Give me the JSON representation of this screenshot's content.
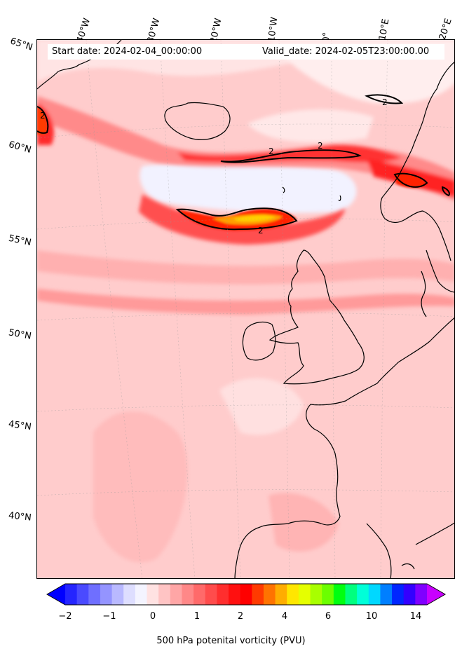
{
  "header": {
    "start_date": "Start date: 2024-02-04_00:00:00",
    "valid_date": "Valid_date: 2024-02-05T23:00:00.00"
  },
  "map": {
    "projection": "stereographic",
    "lon_labels": [
      "40°W",
      "30°W",
      "20°W",
      "10°W",
      "0°",
      "10°E",
      "20°E"
    ],
    "lat_labels": [
      "65°N",
      "60°N",
      "55°N",
      "50°N",
      "45°N",
      "40°N"
    ],
    "contour_level": "2",
    "contour_labels": [
      "2",
      "2",
      "2",
      "2",
      "2"
    ],
    "background_color": "#ffd0d0"
  },
  "colorbar": {
    "label": "500 hPa potenital vorticity (PVU)",
    "ticks": [
      "−2",
      "−1",
      "0",
      "1",
      "2",
      "4",
      "6",
      "10",
      "14"
    ],
    "extend": "both",
    "colors": [
      "#0000ff",
      "#2525ff",
      "#4a4aff",
      "#6f6fff",
      "#9494ff",
      "#b9b9ff",
      "#dedeff",
      "#f4f4ff",
      "#ffe2e2",
      "#ffc4c4",
      "#ffa6a6",
      "#ff8888",
      "#ff6a6a",
      "#ff4c4c",
      "#ff2e2e",
      "#ff1010",
      "#ff0000",
      "#ff3a00",
      "#ff7300",
      "#ffad00",
      "#ffe600",
      "#e5ff00",
      "#a8ff00",
      "#6bff00",
      "#00ff10",
      "#00ff7f",
      "#00ffd8",
      "#00d8ff",
      "#007fff",
      "#0026ff",
      "#3300ff",
      "#7f00ff",
      "#c800ff"
    ]
  }
}
